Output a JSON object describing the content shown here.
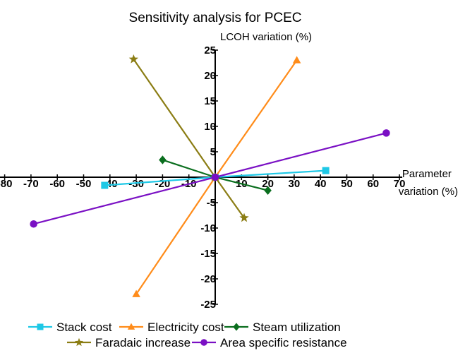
{
  "chart_data": {
    "type": "line",
    "title": "Sensitivity analysis for PCEC",
    "xlabel": "Parameter variation (%)",
    "ylabel": "LCOH variation (%)",
    "xlim": [
      -80,
      70
    ],
    "ylim": [
      -25,
      25
    ],
    "x_ticks": [
      -80,
      -70,
      -60,
      -50,
      -40,
      -30,
      -20,
      -10,
      0,
      10,
      20,
      30,
      40,
      50,
      60,
      70
    ],
    "y_ticks": [
      -25,
      -20,
      -15,
      -10,
      -5,
      0,
      5,
      10,
      15,
      20,
      25
    ],
    "grid": false,
    "legend_position": "bottom",
    "series": [
      {
        "name": "Stack cost",
        "color": "#1ec8e6",
        "marker": "square",
        "points": [
          [
            -42,
            -1.6
          ],
          [
            0,
            0
          ],
          [
            42,
            1.3
          ]
        ]
      },
      {
        "name": "Electricity cost",
        "color": "#ff8c1a",
        "marker": "triangle",
        "points": [
          [
            -30,
            -23
          ],
          [
            0,
            0
          ],
          [
            31,
            23
          ]
        ]
      },
      {
        "name": "Steam utilization",
        "color": "#0a6e1e",
        "marker": "diamond",
        "points": [
          [
            -20,
            3.4
          ],
          [
            0,
            0
          ],
          [
            20,
            -2.6
          ]
        ]
      },
      {
        "name": "Faradaic increase",
        "color": "#8b7d14",
        "marker": "star",
        "points": [
          [
            -31,
            23.2
          ],
          [
            0,
            0
          ],
          [
            11,
            -8
          ]
        ]
      },
      {
        "name": "Area specific resistance",
        "color": "#7a10c4",
        "marker": "circle",
        "points": [
          [
            -69,
            -9.2
          ],
          [
            0,
            0
          ],
          [
            65,
            8.7
          ]
        ]
      }
    ]
  }
}
